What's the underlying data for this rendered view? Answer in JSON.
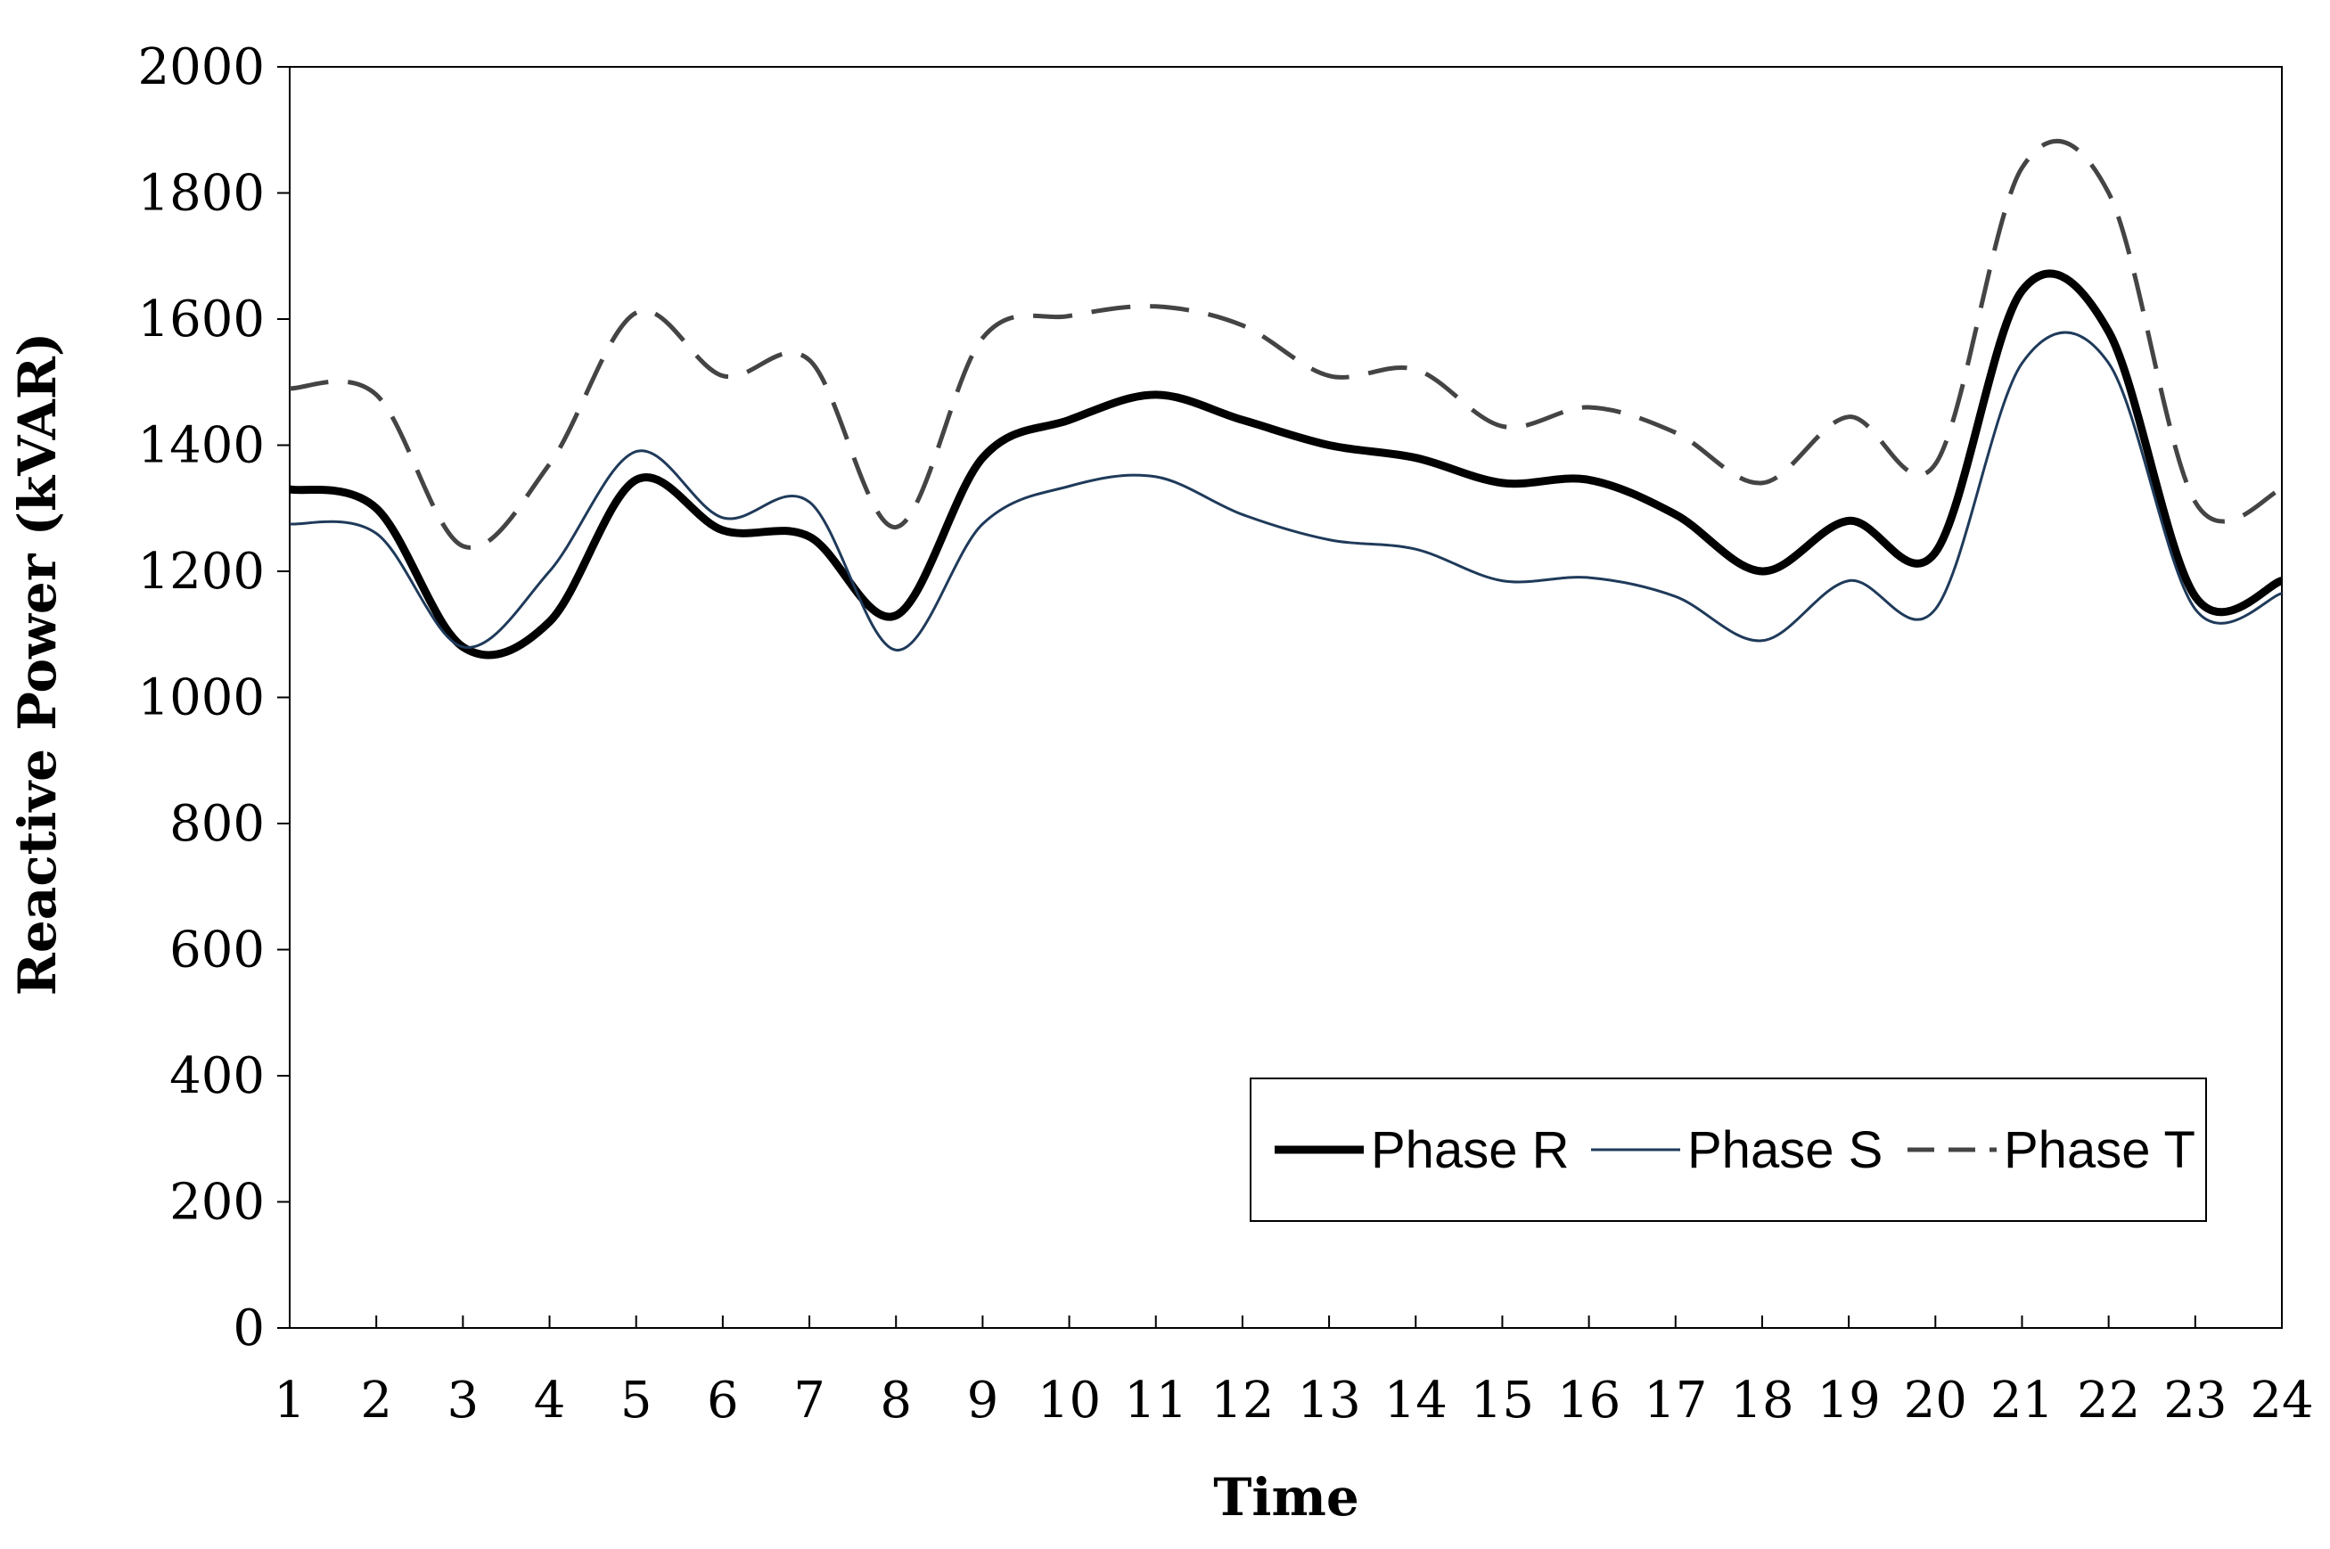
{
  "chart_data": {
    "type": "line",
    "xlabel": "Time",
    "ylabel": "Reactive Power (kVAR)",
    "x": [
      1,
      2,
      3,
      4,
      5,
      6,
      7,
      8,
      9,
      10,
      11,
      12,
      13,
      14,
      15,
      16,
      17,
      18,
      19,
      20,
      21,
      22,
      23,
      24
    ],
    "xticks": [
      "1",
      "2",
      "3",
      "4",
      "5",
      "6",
      "7",
      "8",
      "9",
      "10",
      "11",
      "12",
      "13",
      "14",
      "15",
      "16",
      "17",
      "18",
      "19",
      "20",
      "21",
      "22",
      "23",
      "24"
    ],
    "ylim": [
      0,
      2000
    ],
    "yticks": [
      0,
      200,
      400,
      600,
      800,
      1000,
      1200,
      1400,
      1600,
      1800,
      2000
    ],
    "grid": false,
    "legend_position": "bottom-right",
    "series": [
      {
        "name": "Phase R",
        "color": "#000000",
        "style": "thick-solid",
        "values": [
          1330,
          1300,
          1080,
          1120,
          1345,
          1265,
          1255,
          1130,
          1380,
          1440,
          1480,
          1440,
          1400,
          1380,
          1340,
          1345,
          1290,
          1200,
          1280,
          1230,
          1645,
          1580,
          1160,
          1185
        ]
      },
      {
        "name": "Phase S",
        "color": "#1f3a5a",
        "style": "thin-solid",
        "values": [
          1275,
          1260,
          1080,
          1200,
          1390,
          1285,
          1310,
          1075,
          1275,
          1335,
          1350,
          1290,
          1250,
          1235,
          1185,
          1190,
          1160,
          1090,
          1185,
          1140,
          1530,
          1530,
          1140,
          1165
        ]
      },
      {
        "name": "Phase T",
        "color": "#444444",
        "style": "dashed",
        "values": [
          1490,
          1480,
          1240,
          1370,
          1610,
          1510,
          1535,
          1270,
          1570,
          1605,
          1620,
          1590,
          1510,
          1520,
          1430,
          1460,
          1420,
          1340,
          1445,
          1370,
          1840,
          1800,
          1310,
          1330
        ]
      }
    ]
  }
}
